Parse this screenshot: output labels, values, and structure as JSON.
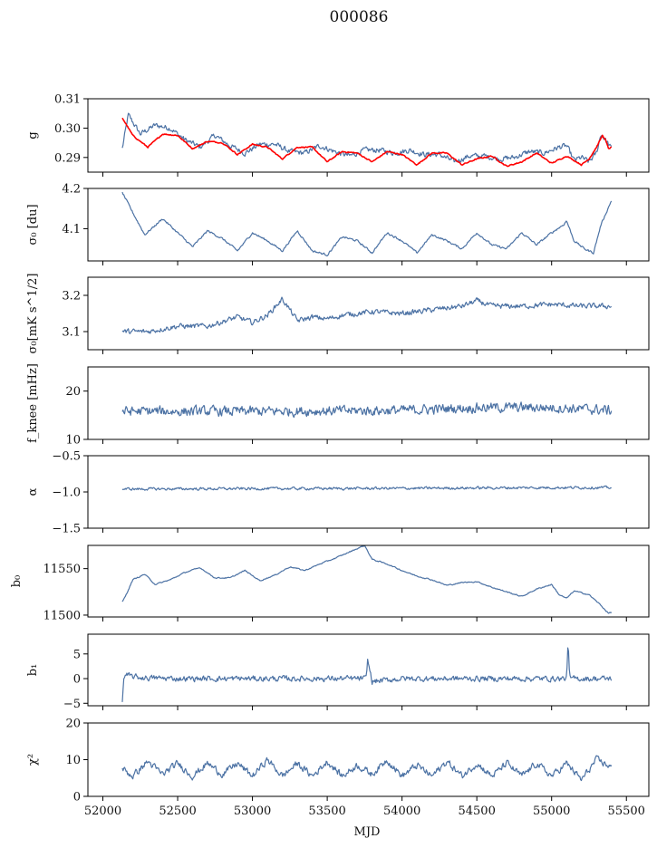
{
  "figure": {
    "title": "000086",
    "xlabel": "MJD"
  },
  "colors": {
    "primary": "#4c72a4",
    "model": "#ff0000"
  },
  "chart_data": [
    {
      "type": "line",
      "id": "g",
      "ylabel": "g",
      "xlim": [
        51900,
        55650
      ],
      "ylim": [
        0.285,
        0.31
      ],
      "yticks": [
        0.29,
        0.3,
        0.31
      ],
      "ytick_labels": [
        "0.29",
        "0.30",
        "0.31"
      ],
      "xrange": [
        52130,
        55400
      ],
      "series": [
        {
          "role": "data",
          "color": "#4c72a4",
          "noise": 0.0009,
          "x": [
            52130,
            52170,
            52250,
            52350,
            52450,
            52550,
            52650,
            52750,
            52850,
            52950,
            53050,
            53150,
            53250,
            53350,
            53450,
            53550,
            53650,
            53750,
            53850,
            53950,
            54050,
            54150,
            54250,
            54350,
            54450,
            54550,
            54650,
            54750,
            54850,
            54950,
            55050,
            55100,
            55150,
            55200,
            55250,
            55300,
            55330,
            55360,
            55400
          ],
          "y": [
            0.293,
            0.3045,
            0.298,
            0.301,
            0.3,
            0.296,
            0.2935,
            0.2975,
            0.294,
            0.2915,
            0.2945,
            0.2945,
            0.292,
            0.2915,
            0.294,
            0.292,
            0.2905,
            0.2925,
            0.2925,
            0.2915,
            0.2925,
            0.291,
            0.291,
            0.2885,
            0.2905,
            0.2905,
            0.2895,
            0.29,
            0.292,
            0.2915,
            0.2935,
            0.294,
            0.289,
            0.29,
            0.2885,
            0.2915,
            0.298,
            0.296,
            0.293
          ]
        },
        {
          "role": "model",
          "color": "#ff0000",
          "noise": 0.0002,
          "x": [
            52130,
            52200,
            52300,
            52400,
            52500,
            52600,
            52700,
            52800,
            52900,
            53000,
            53100,
            53200,
            53300,
            53400,
            53500,
            53600,
            53700,
            53800,
            53900,
            54000,
            54100,
            54200,
            54300,
            54400,
            54500,
            54600,
            54700,
            54800,
            54900,
            55000,
            55100,
            55200,
            55250,
            55300,
            55340,
            55360,
            55380,
            55400
          ],
          "y": [
            0.3035,
            0.2975,
            0.2935,
            0.298,
            0.2975,
            0.293,
            0.2955,
            0.295,
            0.291,
            0.2945,
            0.2935,
            0.2895,
            0.2935,
            0.2935,
            0.2885,
            0.292,
            0.2915,
            0.2885,
            0.292,
            0.291,
            0.2875,
            0.2915,
            0.2915,
            0.2875,
            0.2895,
            0.2905,
            0.287,
            0.2885,
            0.2915,
            0.288,
            0.2905,
            0.2875,
            0.2895,
            0.2935,
            0.2975,
            0.296,
            0.293,
            0.2935
          ]
        }
      ]
    },
    {
      "type": "line",
      "id": "sigma0-du",
      "ylabel": "σ₀ [du]",
      "xlim": [
        51900,
        55650
      ],
      "ylim": [
        4.02,
        4.2
      ],
      "yticks": [
        4.1,
        4.2
      ],
      "ytick_labels": [
        "4.1",
        "4.2"
      ],
      "series": [
        {
          "role": "data",
          "color": "#4c72a4",
          "noise": 0.0025,
          "x": [
            52130,
            52200,
            52280,
            52400,
            52500,
            52600,
            52700,
            52800,
            52900,
            53000,
            53100,
            53200,
            53300,
            53400,
            53500,
            53600,
            53700,
            53800,
            53900,
            54000,
            54100,
            54200,
            54300,
            54400,
            54500,
            54600,
            54700,
            54800,
            54900,
            55000,
            55080,
            55100,
            55150,
            55220,
            55280,
            55330,
            55400
          ],
          "y": [
            4.19,
            4.14,
            4.085,
            4.125,
            4.09,
            4.055,
            4.095,
            4.075,
            4.045,
            4.09,
            4.07,
            4.045,
            4.095,
            4.045,
            4.035,
            4.08,
            4.07,
            4.04,
            4.09,
            4.07,
            4.04,
            4.085,
            4.07,
            4.05,
            4.09,
            4.06,
            4.05,
            4.09,
            4.06,
            4.09,
            4.11,
            4.12,
            4.07,
            4.05,
            4.04,
            4.11,
            4.17
          ]
        }
      ]
    },
    {
      "type": "line",
      "id": "sigma0-mk",
      "ylabel": "σ₀[mK s^1/2]",
      "xlim": [
        51900,
        55650
      ],
      "ylim": [
        3.05,
        3.25
      ],
      "yticks": [
        3.1,
        3.2
      ],
      "ytick_labels": [
        "3.1",
        "3.2"
      ],
      "series": [
        {
          "role": "data",
          "color": "#4c72a4",
          "noise": 0.007,
          "x": [
            52130,
            52300,
            52500,
            52700,
            52900,
            53000,
            53100,
            53200,
            53250,
            53300,
            53400,
            53500,
            53600,
            53800,
            54000,
            54200,
            54400,
            54500,
            54600,
            54800,
            55000,
            55200,
            55400
          ],
          "y": [
            3.1,
            3.1,
            3.115,
            3.115,
            3.14,
            3.125,
            3.145,
            3.19,
            3.16,
            3.13,
            3.14,
            3.135,
            3.145,
            3.155,
            3.15,
            3.16,
            3.17,
            3.185,
            3.17,
            3.17,
            3.175,
            3.17,
            3.17
          ]
        }
      ]
    },
    {
      "type": "line",
      "id": "fknee",
      "ylabel": "f_knee [mHz]",
      "xlim": [
        51900,
        55650
      ],
      "ylim": [
        10,
        25
      ],
      "yticks": [
        10,
        20
      ],
      "ytick_labels": [
        "10",
        "20"
      ],
      "series": [
        {
          "role": "data",
          "color": "#4c72a4",
          "noise": 1.0,
          "x": [
            52130,
            53000,
            54000,
            54500,
            55000,
            55400
          ],
          "y": [
            15.8,
            15.8,
            16.0,
            16.6,
            16.6,
            16.0
          ]
        }
      ]
    },
    {
      "type": "line",
      "id": "alpha",
      "ylabel": "α",
      "xlim": [
        51900,
        55650
      ],
      "ylim": [
        -1.5,
        -0.5
      ],
      "yticks": [
        -1.5,
        -1.0,
        -0.5
      ],
      "ytick_labels": [
        "−1.5",
        "−1.0",
        "−0.5"
      ],
      "series": [
        {
          "role": "data",
          "color": "#4c72a4",
          "noise": 0.018,
          "x": [
            52130,
            53000,
            54000,
            55000,
            55400
          ],
          "y": [
            -0.96,
            -0.955,
            -0.95,
            -0.94,
            -0.94
          ]
        }
      ]
    },
    {
      "type": "line",
      "id": "b0",
      "ylabel": "b₀",
      "xlim": [
        51900,
        55650
      ],
      "ylim": [
        11498,
        11575
      ],
      "yticks": [
        11500,
        11550
      ],
      "ytick_labels": [
        "11500",
        "11550"
      ],
      "series": [
        {
          "role": "data",
          "color": "#4c72a4",
          "noise": 0.6,
          "x": [
            52130,
            52150,
            52200,
            52280,
            52350,
            52450,
            52550,
            52650,
            52750,
            52850,
            52950,
            53050,
            53150,
            53250,
            53350,
            53450,
            53550,
            53650,
            53750,
            53800,
            53900,
            54000,
            54100,
            54200,
            54300,
            54400,
            54500,
            54600,
            54700,
            54800,
            54900,
            55000,
            55050,
            55100,
            55150,
            55250,
            55320,
            55380,
            55400
          ],
          "y": [
            11514,
            11520,
            11538,
            11544,
            11533,
            11538,
            11546,
            11551,
            11540,
            11540,
            11548,
            11537,
            11543,
            11552,
            11548,
            11555,
            11561,
            11568,
            11575,
            11560,
            11555,
            11548,
            11542,
            11538,
            11532,
            11535,
            11536,
            11530,
            11525,
            11520,
            11528,
            11533,
            11522,
            11518,
            11526,
            11522,
            11512,
            11502,
            11503
          ]
        }
      ]
    },
    {
      "type": "line",
      "id": "b1",
      "ylabel": "b₁",
      "xlim": [
        51900,
        55650
      ],
      "ylim": [
        -5.5,
        9
      ],
      "yticks": [
        -5,
        0,
        5
      ],
      "ytick_labels": [
        "−5",
        "0",
        "5"
      ],
      "series": [
        {
          "role": "data",
          "color": "#4c72a4",
          "noise": 0.55,
          "x": [
            52130,
            52140,
            52160,
            52250,
            52500,
            53000,
            53500,
            53760,
            53770,
            53800,
            54000,
            54500,
            55000,
            55100,
            55110,
            55120,
            55200,
            55300,
            55400
          ],
          "y": [
            -4.7,
            0.2,
            0.6,
            0.2,
            0,
            0,
            0,
            0,
            3.8,
            -0.6,
            0,
            0,
            0,
            0,
            7.9,
            0,
            0,
            0,
            0
          ]
        }
      ]
    },
    {
      "type": "line",
      "id": "chi2",
      "ylabel": "χ²",
      "xlim": [
        51900,
        55650
      ],
      "ylim": [
        0,
        20
      ],
      "yticks": [
        0,
        10,
        20
      ],
      "ytick_labels": [
        "0",
        "10",
        "20"
      ],
      "xticks": [
        52000,
        52500,
        53000,
        53500,
        54000,
        54500,
        55000,
        55500
      ],
      "xtick_labels": [
        "52000",
        "52500",
        "53000",
        "53500",
        "54000",
        "54500",
        "55000",
        "55500"
      ],
      "series": [
        {
          "role": "data",
          "color": "#4c72a4",
          "noise": 0.9,
          "x": [
            52130,
            52200,
            52300,
            52400,
            52500,
            52600,
            52700,
            52800,
            52900,
            53000,
            53100,
            53200,
            53300,
            53400,
            53500,
            53600,
            53700,
            53800,
            53900,
            54000,
            54100,
            54200,
            54300,
            54400,
            54500,
            54600,
            54700,
            54800,
            54900,
            55000,
            55100,
            55200,
            55300,
            55400
          ],
          "y": [
            7.5,
            5.5,
            9.5,
            6,
            9,
            5.5,
            9,
            6,
            9,
            5.5,
            10,
            5.5,
            9,
            5.5,
            9.5,
            5.5,
            8.5,
            6,
            10,
            5.5,
            8.5,
            5.5,
            9.5,
            5.5,
            9,
            5.5,
            9,
            5.5,
            9,
            5.5,
            9,
            4.5,
            10,
            8
          ]
        }
      ]
    }
  ]
}
